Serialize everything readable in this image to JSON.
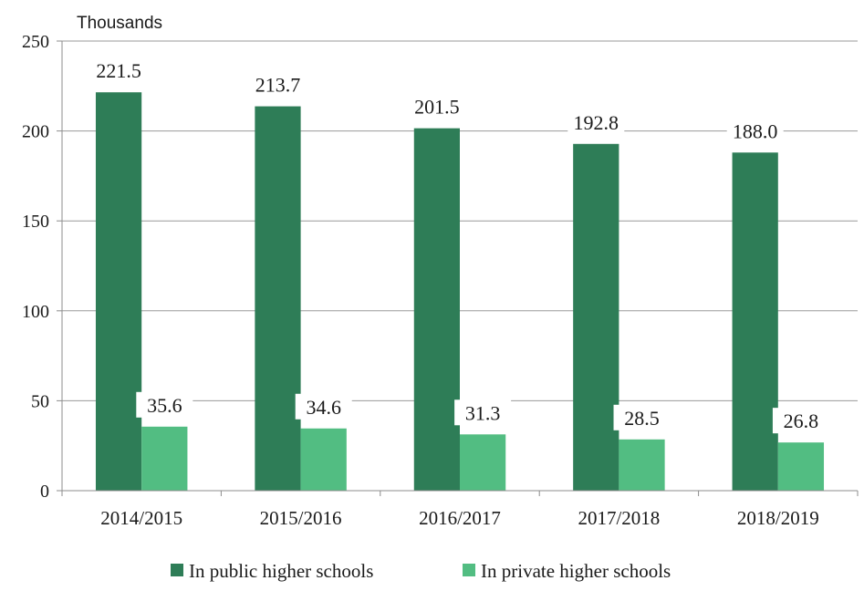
{
  "chart_data": {
    "type": "bar",
    "unit_label": "Thousands",
    "categories": [
      "2014/2015",
      "2015/2016",
      "2016/2017",
      "2017/2018",
      "2018/2019"
    ],
    "series": [
      {
        "name": "In public higher schools",
        "color": "#2e7d57",
        "values": [
          221.5,
          213.7,
          201.5,
          192.8,
          188.0
        ],
        "labels": [
          "221.5",
          "213.7",
          "201.5",
          "192.8",
          "188.0"
        ]
      },
      {
        "name": "In private higher schools",
        "color": "#52bd82",
        "values": [
          35.6,
          34.6,
          31.3,
          28.5,
          26.8
        ],
        "labels": [
          "35.6",
          "34.6",
          "31.3",
          "28.5",
          "26.8"
        ]
      }
    ],
    "ylim": [
      0,
      250
    ],
    "yticks": [
      "0",
      "50",
      "100",
      "150",
      "200",
      "250"
    ],
    "grid": true,
    "legend_position": "bottom"
  }
}
